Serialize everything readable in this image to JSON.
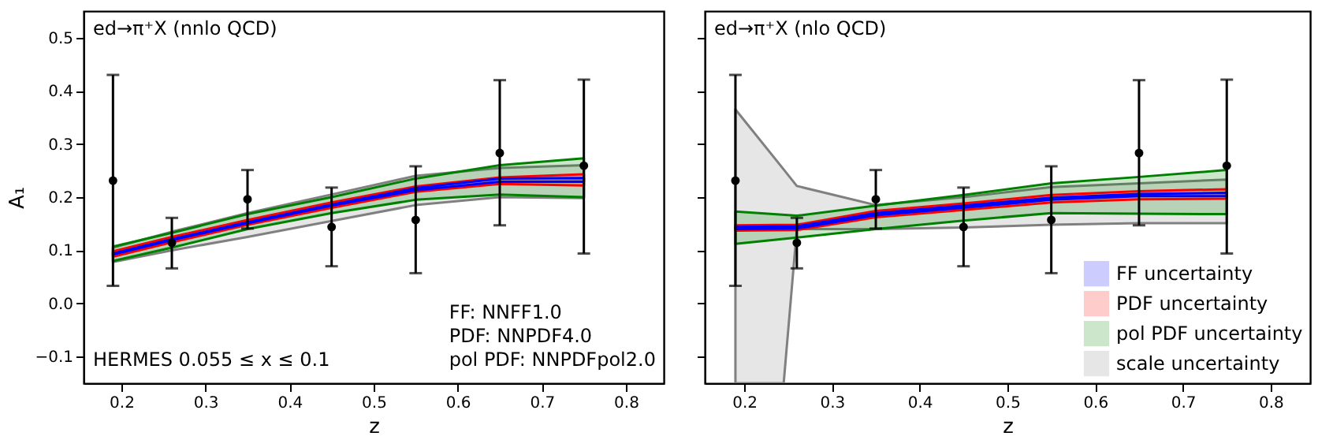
{
  "chart_data": [
    {
      "type": "line",
      "title": "ed→π⁺X (nnlo QCD)",
      "xlabel": "z",
      "ylabel": "A₁",
      "xlim": [
        0.155,
        0.845
      ],
      "ylim": [
        -0.15,
        0.55
      ],
      "xticks": [
        0.2,
        0.3,
        0.4,
        0.5,
        0.6,
        0.7,
        0.8
      ],
      "yticks": [
        {
          "value": -0.1,
          "label": "−0.1"
        },
        {
          "value": 0,
          "label": "0.0"
        },
        0.1,
        0.2,
        0.3,
        0.4,
        0.5
      ],
      "grid": false,
      "legend": false,
      "annotations": [
        "HERMES 0.055 ≤ x ≤ 0.1",
        "FF: NNFF1.0",
        "PDF: NNPDF4.0",
        "pol PDF: NNPDFpol2.0"
      ],
      "x": [
        0.19,
        0.26,
        0.35,
        0.45,
        0.55,
        0.65,
        0.75
      ],
      "series": [
        {
          "color": "#0000ff",
          "values": [
            null,
            null,
            null,
            null,
            null,
            null,
            null
          ],
          "lower": [
            0.092,
            0.119,
            0.151,
            0.184,
            0.213,
            0.229,
            0.229
          ],
          "upper": [
            0.094,
            0.121,
            0.153,
            0.186,
            0.217,
            0.235,
            0.236
          ]
        },
        {
          "color": "#ff0000",
          "values": [
            null,
            null,
            null,
            null,
            null,
            null,
            null
          ],
          "lower": [
            0.088,
            0.115,
            0.148,
            0.18,
            0.21,
            0.225,
            0.222
          ],
          "upper": [
            0.098,
            0.125,
            0.157,
            0.19,
            0.22,
            0.237,
            0.243
          ]
        },
        {
          "color": "#008000",
          "values": [
            null,
            null,
            null,
            null,
            null,
            null,
            null
          ],
          "lower": [
            0.08,
            0.105,
            0.14,
            0.17,
            0.195,
            0.205,
            0.2
          ],
          "upper": [
            0.107,
            0.133,
            0.168,
            0.2,
            0.235,
            0.26,
            0.273
          ]
        },
        {
          "color": "#808080",
          "values": [
            null,
            null,
            null,
            null,
            null,
            null,
            null
          ],
          "lower": [
            0.078,
            0.1,
            0.125,
            0.155,
            0.185,
            0.2,
            0.198
          ],
          "upper": [
            0.105,
            0.135,
            0.17,
            0.205,
            0.24,
            0.255,
            0.26
          ]
        },
        {
          "type": "scatter",
          "color": "#000000",
          "marker": "circle",
          "values": [
            0.231,
            0.114,
            0.196,
            0.144,
            0.157,
            0.283,
            0.259
          ],
          "errors": [
            [
              0.033,
              0.43
            ],
            [
              0.066,
              0.161
            ],
            [
              0.141,
              0.251
            ],
            [
              0.07,
              0.218
            ],
            [
              0.057,
              0.258
            ],
            [
              0.147,
              0.42
            ],
            [
              0.094,
              0.421
            ]
          ]
        }
      ]
    },
    {
      "type": "line",
      "title": "ed→π⁺X (nlo QCD)",
      "xlabel": "z",
      "xlim": [
        0.155,
        0.845
      ],
      "ylim": [
        -0.15,
        0.55
      ],
      "xticks": [
        0.2,
        0.3,
        0.4,
        0.5,
        0.6,
        0.7,
        0.8
      ],
      "yticks": [
        -0.1,
        0,
        0.1,
        0.2,
        0.3,
        0.4,
        0.5
      ],
      "tick_labels": "x",
      "grid": false,
      "legend": "bottom right",
      "x": [
        0.19,
        0.26,
        0.35,
        0.45,
        0.55,
        0.65,
        0.75
      ],
      "series": [
        {
          "name": "FF uncertainty",
          "color": "#0000ff",
          "values": [
            null,
            null,
            null,
            null,
            null,
            null,
            null
          ],
          "lower": [
            0.14,
            0.141,
            0.166,
            0.18,
            0.195,
            0.202,
            0.202
          ],
          "upper": [
            0.144,
            0.145,
            0.17,
            0.184,
            0.199,
            0.206,
            0.208
          ]
        },
        {
          "name": "PDF uncertainty",
          "color": "#ff0000",
          "values": [
            null,
            null,
            null,
            null,
            null,
            null,
            null
          ],
          "lower": [
            0.137,
            0.138,
            0.162,
            0.176,
            0.19,
            0.196,
            0.197
          ],
          "upper": [
            0.147,
            0.148,
            0.174,
            0.188,
            0.204,
            0.211,
            0.215
          ]
        },
        {
          "name": "pol PDF uncertainty",
          "color": "#008000",
          "values": [
            null,
            null,
            null,
            null,
            null,
            null,
            null
          ],
          "lower": [
            0.112,
            0.124,
            0.14,
            0.156,
            0.17,
            0.169,
            0.168
          ],
          "upper": [
            0.173,
            0.165,
            0.184,
            0.204,
            0.226,
            0.238,
            0.251
          ]
        },
        {
          "name": "scale uncertainty",
          "color": "#808080",
          "x": [
            0.19,
            0.245,
            0.26,
            0.35,
            0.45,
            0.55,
            0.65,
            0.75
          ],
          "values": [
            null,
            null,
            null,
            null,
            null,
            null,
            null,
            null
          ],
          "lower": [
            -0.15,
            -0.15,
            0.14,
            0.14,
            0.143,
            0.148,
            0.151,
            0.151
          ],
          "upper": [
            0.365,
            0.252,
            0.221,
            0.185,
            0.2,
            0.219,
            0.226,
            0.233
          ]
        },
        {
          "type": "scatter",
          "color": "#000000",
          "marker": "circle",
          "values": [
            0.231,
            0.114,
            0.196,
            0.144,
            0.157,
            0.283,
            0.259
          ],
          "errors": [
            [
              0.033,
              0.43
            ],
            [
              0.066,
              0.161
            ],
            [
              0.141,
              0.251
            ],
            [
              0.07,
              0.218
            ],
            [
              0.057,
              0.258
            ],
            [
              0.147,
              0.42
            ],
            [
              0.094,
              0.421
            ]
          ]
        }
      ]
    }
  ]
}
